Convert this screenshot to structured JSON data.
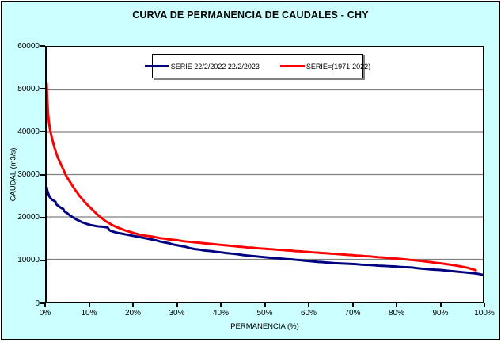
{
  "colors": {
    "background": "#CCFFFF",
    "plot_background": "#FFFFFF",
    "grid": "#808080",
    "axis": "#000000",
    "series_blue": "#000080",
    "series_red": "#FF0000",
    "legend_shadow": "#808080"
  },
  "chart_data": {
    "type": "line",
    "title": "CURVA DE PERMANENCIA DE CAUDALES - CHY",
    "xlabel": "PERMANENCIA (%)",
    "ylabel": "CAUDAL (m3/s)",
    "xlim": [
      0,
      100
    ],
    "ylim": [
      0,
      60000
    ],
    "x_tick_labels": [
      "0%",
      "10%",
      "20%",
      "30%",
      "40%",
      "50%",
      "60%",
      "70%",
      "80%",
      "90%",
      "100%"
    ],
    "y_tick_labels": [
      "0",
      "10000",
      "20000",
      "30000",
      "40000",
      "50000",
      "60000"
    ],
    "grid": "horizontal-gridlines-only",
    "legend_position": "inside-top-center",
    "series": [
      {
        "name": "SERIE 22/2/2022 22/2/2023",
        "color": "#000080",
        "line_width": 3,
        "points": [
          [
            0,
            27000
          ],
          [
            0.15,
            26200
          ],
          [
            0.3,
            25700
          ],
          [
            0.5,
            25100
          ],
          [
            0.7,
            24700
          ],
          [
            1,
            24300
          ],
          [
            1.3,
            24000
          ],
          [
            1.7,
            23800
          ],
          [
            2,
            23600
          ],
          [
            2.2,
            23000
          ],
          [
            2.5,
            22700
          ],
          [
            2.8,
            22500
          ],
          [
            3.2,
            22200
          ],
          [
            3.5,
            22000
          ],
          [
            3.8,
            21900
          ],
          [
            4,
            21400
          ],
          [
            4.3,
            21100
          ],
          [
            4.7,
            20900
          ],
          [
            5,
            20600
          ],
          [
            5.3,
            20400
          ],
          [
            5.6,
            20150
          ],
          [
            6,
            19900
          ],
          [
            6.4,
            19650
          ],
          [
            6.8,
            19400
          ],
          [
            7.2,
            19200
          ],
          [
            7.6,
            19000
          ],
          [
            8,
            18800
          ],
          [
            8.5,
            18600
          ],
          [
            9,
            18400
          ],
          [
            9.5,
            18250
          ],
          [
            10,
            18100
          ],
          [
            10.5,
            18000
          ],
          [
            11,
            17900
          ],
          [
            11.5,
            17800
          ],
          [
            12,
            17750
          ],
          [
            12.5,
            17700
          ],
          [
            13,
            17650
          ],
          [
            13.5,
            17550
          ],
          [
            14,
            17500
          ],
          [
            14.2,
            17100
          ],
          [
            14.5,
            16800
          ],
          [
            15,
            16600
          ],
          [
            15.5,
            16450
          ],
          [
            16,
            16300
          ],
          [
            16.5,
            16200
          ],
          [
            17,
            16100
          ],
          [
            17.5,
            16000
          ],
          [
            18,
            15900
          ],
          [
            18.5,
            15800
          ],
          [
            19,
            15700
          ],
          [
            19.5,
            15600
          ],
          [
            20,
            15500
          ],
          [
            21,
            15300
          ],
          [
            22,
            15100
          ],
          [
            23,
            14900
          ],
          [
            24,
            14700
          ],
          [
            25,
            14500
          ],
          [
            26,
            14200
          ],
          [
            27,
            14000
          ],
          [
            28,
            13800
          ],
          [
            29,
            13500
          ],
          [
            30,
            13300
          ],
          [
            31,
            13100
          ],
          [
            32,
            12900
          ],
          [
            33,
            12600
          ],
          [
            34,
            12400
          ],
          [
            35,
            12300
          ],
          [
            36,
            12100
          ],
          [
            37,
            12000
          ],
          [
            38,
            11900
          ],
          [
            39,
            11750
          ],
          [
            40,
            11650
          ],
          [
            41,
            11500
          ],
          [
            42,
            11400
          ],
          [
            43,
            11300
          ],
          [
            44,
            11150
          ],
          [
            45,
            11000
          ],
          [
            46,
            10900
          ],
          [
            47,
            10800
          ],
          [
            48,
            10700
          ],
          [
            49,
            10600
          ],
          [
            50,
            10500
          ],
          [
            51,
            10400
          ],
          [
            52,
            10300
          ],
          [
            53,
            10250
          ],
          [
            54,
            10150
          ],
          [
            55,
            10050
          ],
          [
            56,
            10000
          ],
          [
            57,
            9900
          ],
          [
            58,
            9800
          ],
          [
            59,
            9700
          ],
          [
            60,
            9600
          ],
          [
            61,
            9500
          ],
          [
            62,
            9400
          ],
          [
            63,
            9350
          ],
          [
            64,
            9250
          ],
          [
            65,
            9200
          ],
          [
            66,
            9100
          ],
          [
            67,
            9050
          ],
          [
            68,
            9000
          ],
          [
            69,
            8950
          ],
          [
            70,
            8900
          ],
          [
            71,
            8850
          ],
          [
            72,
            8750
          ],
          [
            73,
            8700
          ],
          [
            74,
            8650
          ],
          [
            75,
            8600
          ],
          [
            76,
            8500
          ],
          [
            77,
            8450
          ],
          [
            78,
            8400
          ],
          [
            79,
            8350
          ],
          [
            80,
            8300
          ],
          [
            81,
            8200
          ],
          [
            82,
            8150
          ],
          [
            83,
            8100
          ],
          [
            84,
            8050
          ],
          [
            84.5,
            7950
          ],
          [
            85,
            7900
          ],
          [
            86,
            7800
          ],
          [
            87,
            7700
          ],
          [
            88,
            7600
          ],
          [
            89,
            7550
          ],
          [
            90,
            7500
          ],
          [
            91,
            7400
          ],
          [
            92,
            7300
          ],
          [
            93,
            7200
          ],
          [
            94,
            7100
          ],
          [
            95,
            7000
          ],
          [
            96,
            6900
          ],
          [
            97,
            6800
          ],
          [
            98,
            6700
          ],
          [
            99,
            6550
          ],
          [
            99.5,
            6450
          ],
          [
            100,
            6300
          ]
        ]
      },
      {
        "name": "SERIE=(1971-2022)",
        "color": "#FF0000",
        "line_width": 3,
        "points": [
          [
            0,
            51500
          ],
          [
            0.15,
            47500
          ],
          [
            0.3,
            44500
          ],
          [
            0.5,
            42500
          ],
          [
            0.7,
            41000
          ],
          [
            1,
            39500
          ],
          [
            1.4,
            37800
          ],
          [
            1.8,
            36300
          ],
          [
            2.2,
            35000
          ],
          [
            2.6,
            33900
          ],
          [
            3,
            33000
          ],
          [
            3.5,
            31900
          ],
          [
            4,
            30800
          ],
          [
            4.3,
            30000
          ],
          [
            4.7,
            29300
          ],
          [
            5,
            28800
          ],
          [
            5.5,
            28000
          ],
          [
            6,
            27200
          ],
          [
            6.5,
            26400
          ],
          [
            7,
            25700
          ],
          [
            7.5,
            25000
          ],
          [
            8,
            24400
          ],
          [
            8.5,
            23800
          ],
          [
            9,
            23200
          ],
          [
            9.5,
            22700
          ],
          [
            10,
            22200
          ],
          [
            10.5,
            21700
          ],
          [
            11,
            21200
          ],
          [
            11.5,
            20700
          ],
          [
            12,
            20200
          ],
          [
            12.5,
            19800
          ],
          [
            13,
            19400
          ],
          [
            13.5,
            19000
          ],
          [
            14,
            18700
          ],
          [
            14.5,
            18400
          ],
          [
            15,
            18100
          ],
          [
            16,
            17600
          ],
          [
            17,
            17200
          ],
          [
            18,
            16800
          ],
          [
            19,
            16500
          ],
          [
            20,
            16200
          ],
          [
            21,
            15900
          ],
          [
            22,
            15700
          ],
          [
            23,
            15500
          ],
          [
            24,
            15400
          ],
          [
            25,
            15200
          ],
          [
            26,
            15000
          ],
          [
            27,
            14900
          ],
          [
            28,
            14700
          ],
          [
            29,
            14600
          ],
          [
            30,
            14500
          ],
          [
            31,
            14300
          ],
          [
            32,
            14200
          ],
          [
            33,
            14100
          ],
          [
            34,
            14000
          ],
          [
            35,
            13900
          ],
          [
            36,
            13800
          ],
          [
            37,
            13700
          ],
          [
            38,
            13600
          ],
          [
            39,
            13500
          ],
          [
            40,
            13400
          ],
          [
            41,
            13300
          ],
          [
            42,
            13200
          ],
          [
            43,
            13100
          ],
          [
            44,
            13000
          ],
          [
            45,
            12900
          ],
          [
            46,
            12800
          ],
          [
            47,
            12750
          ],
          [
            48,
            12650
          ],
          [
            49,
            12550
          ],
          [
            50,
            12500
          ],
          [
            51,
            12400
          ],
          [
            52,
            12350
          ],
          [
            53,
            12250
          ],
          [
            54,
            12200
          ],
          [
            55,
            12100
          ],
          [
            56,
            12050
          ],
          [
            57,
            11950
          ],
          [
            58,
            11900
          ],
          [
            59,
            11800
          ],
          [
            60,
            11750
          ],
          [
            61,
            11650
          ],
          [
            62,
            11600
          ],
          [
            63,
            11500
          ],
          [
            64,
            11450
          ],
          [
            65,
            11350
          ],
          [
            66,
            11300
          ],
          [
            67,
            11200
          ],
          [
            68,
            11150
          ],
          [
            69,
            11050
          ],
          [
            70,
            11000
          ],
          [
            71,
            10900
          ],
          [
            72,
            10850
          ],
          [
            73,
            10750
          ],
          [
            74,
            10700
          ],
          [
            75,
            10600
          ],
          [
            76,
            10500
          ],
          [
            77,
            10450
          ],
          [
            78,
            10350
          ],
          [
            79,
            10250
          ],
          [
            80,
            10200
          ],
          [
            81,
            10100
          ],
          [
            82,
            10000
          ],
          [
            83,
            9900
          ],
          [
            84,
            9800
          ],
          [
            85,
            9700
          ],
          [
            86,
            9600
          ],
          [
            87,
            9450
          ],
          [
            88,
            9350
          ],
          [
            89,
            9200
          ],
          [
            90,
            9100
          ],
          [
            91,
            8950
          ],
          [
            92,
            8800
          ],
          [
            93,
            8650
          ],
          [
            94,
            8500
          ],
          [
            95,
            8300
          ],
          [
            96,
            8100
          ],
          [
            96.5,
            8000
          ],
          [
            97,
            7850
          ],
          [
            97.5,
            7700
          ],
          [
            98,
            7550
          ],
          [
            98.4,
            7400
          ]
        ]
      }
    ]
  }
}
